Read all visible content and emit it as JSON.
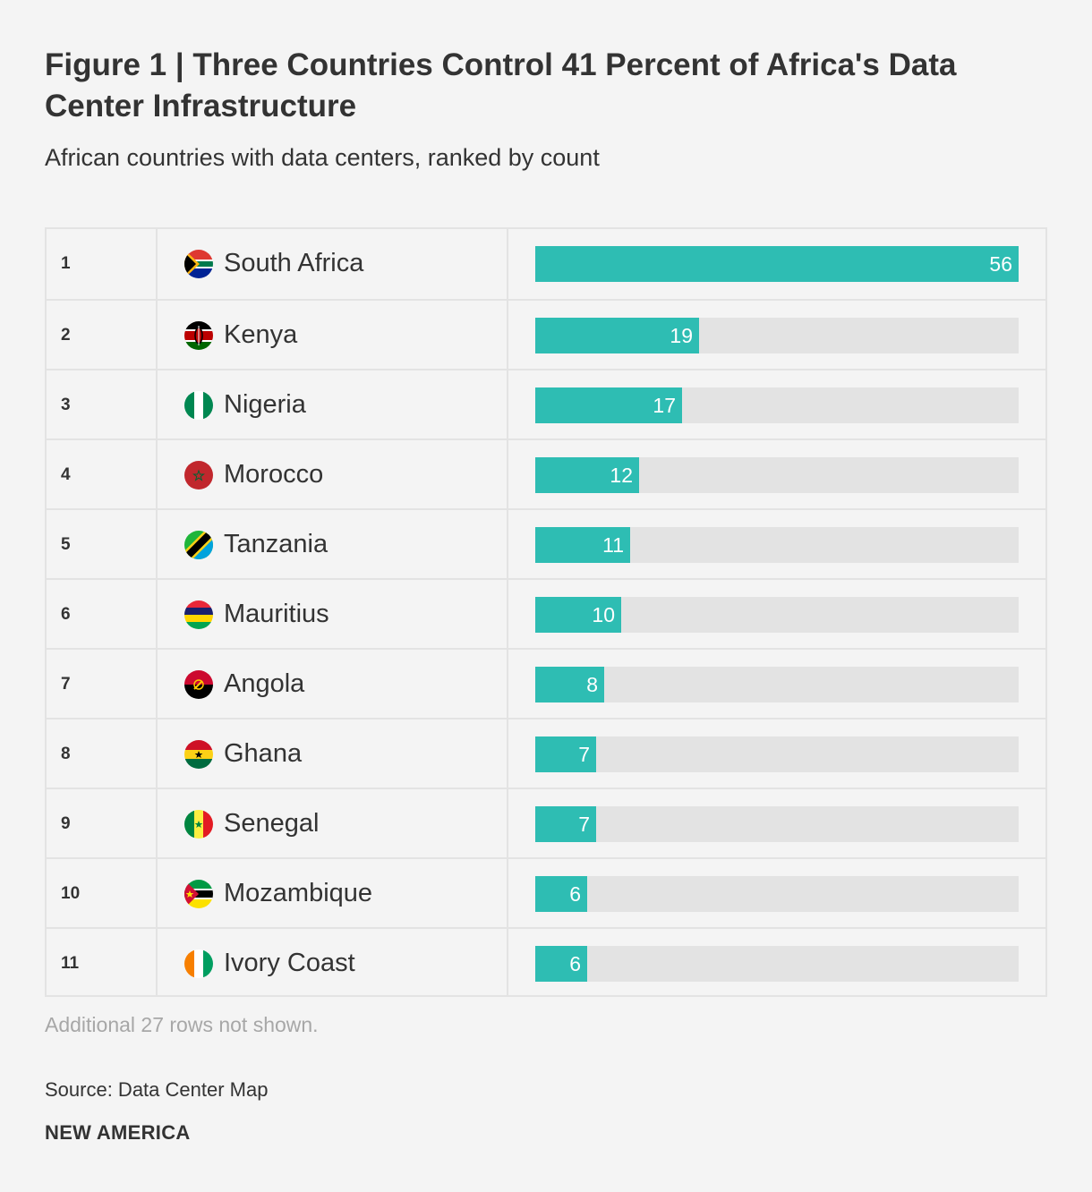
{
  "title": "Figure 1 | Three Countries Control 41 Percent of Africa's Data Center Infrastructure",
  "subtitle": "African countries with data centers, ranked by count",
  "colors": {
    "bar": "#2ebdb3",
    "track": "#e3e3e3",
    "background": "#f4f4f4",
    "text": "#333333",
    "note": "#a7a7a7"
  },
  "chart_data": {
    "type": "bar",
    "orientation": "horizontal",
    "title": "Figure 1 | Three Countries Control 41 Percent of Africa's Data Center Infrastructure",
    "subtitle": "African countries with data centers, ranked by count",
    "xlim": [
      0,
      56
    ],
    "rows": [
      {
        "rank": "1",
        "country": "South Africa",
        "value": 56,
        "flag": "south-africa-flag"
      },
      {
        "rank": "2",
        "country": "Kenya",
        "value": 19,
        "flag": "kenya-flag"
      },
      {
        "rank": "3",
        "country": "Nigeria",
        "value": 17,
        "flag": "nigeria-flag"
      },
      {
        "rank": "4",
        "country": "Morocco",
        "value": 12,
        "flag": "morocco-flag"
      },
      {
        "rank": "5",
        "country": "Tanzania",
        "value": 11,
        "flag": "tanzania-flag"
      },
      {
        "rank": "6",
        "country": "Mauritius",
        "value": 10,
        "flag": "mauritius-flag"
      },
      {
        "rank": "7",
        "country": "Angola",
        "value": 8,
        "flag": "angola-flag"
      },
      {
        "rank": "8",
        "country": "Ghana",
        "value": 7,
        "flag": "ghana-flag"
      },
      {
        "rank": "9",
        "country": "Senegal",
        "value": 7,
        "flag": "senegal-flag"
      },
      {
        "rank": "10",
        "country": "Mozambique",
        "value": 6,
        "flag": "mozambique-flag"
      },
      {
        "rank": "11",
        "country": "Ivory Coast",
        "value": 6,
        "flag": "ivory-coast-flag"
      }
    ]
  },
  "note": "Additional 27 rows not shown.",
  "source": "Source: Data Center Map",
  "brand": "NEW AMERICA"
}
